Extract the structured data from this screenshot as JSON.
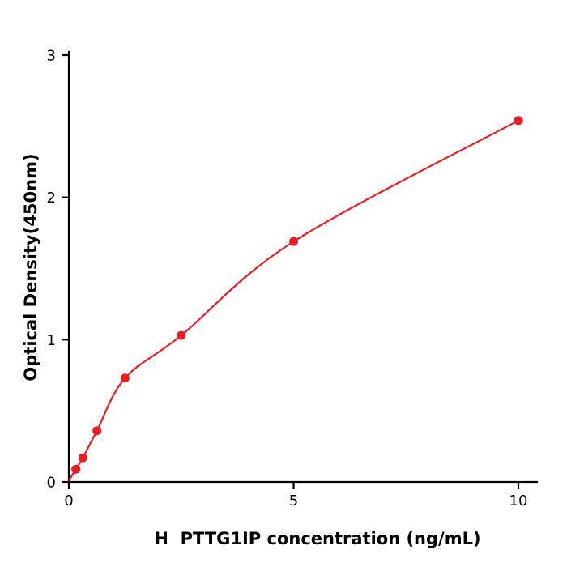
{
  "chart_data": {
    "type": "scatter",
    "title": "",
    "xlabel": "H  PTTG1IP concentration (ng/mL)",
    "ylabel": "Optical Density(450nm)",
    "x": [
      0.156,
      0.313,
      0.625,
      1.25,
      2.5,
      5,
      10
    ],
    "y": [
      0.09,
      0.17,
      0.36,
      0.73,
      1.03,
      1.69,
      2.54
    ],
    "curve_start": [
      0,
      0.01
    ],
    "xlim": [
      0,
      10.4
    ],
    "ylim": [
      0,
      3
    ],
    "xticks": [
      0,
      5,
      10
    ],
    "yticks": [
      0,
      1,
      2,
      3
    ],
    "grid": false,
    "legend": null,
    "point_color": "#ed1c24",
    "line_color": "#ed1c24",
    "axis_color": "#000000"
  }
}
